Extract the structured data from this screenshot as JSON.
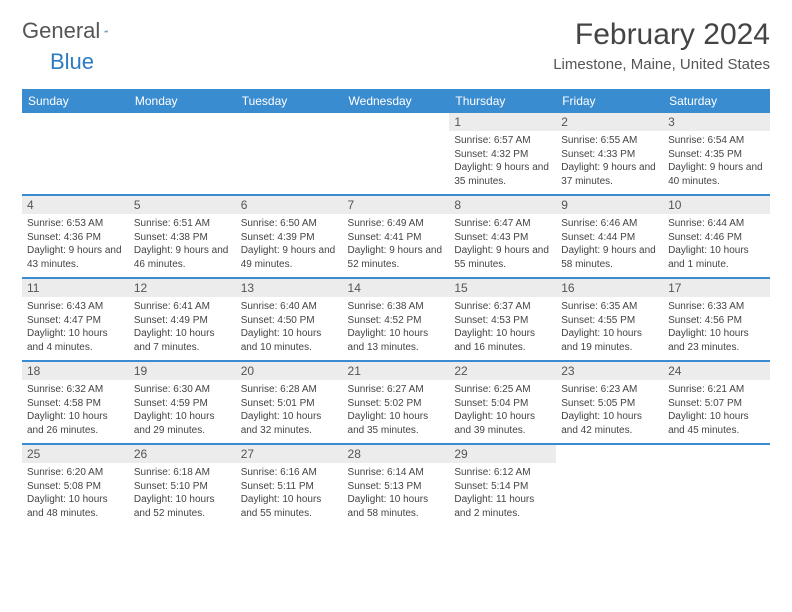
{
  "logo": {
    "text_a": "General",
    "text_b": "Blue"
  },
  "title": "February 2024",
  "location": "Limestone, Maine, United States",
  "colors": {
    "header_bg": "#3a8cd0",
    "header_text": "#ffffff",
    "daynum_bg": "#ececec",
    "border": "#3a8cd0",
    "body_text": "#444444",
    "logo_gray": "#555555",
    "logo_blue": "#2d7bc0"
  },
  "weekdays": [
    "Sunday",
    "Monday",
    "Tuesday",
    "Wednesday",
    "Thursday",
    "Friday",
    "Saturday"
  ],
  "weeks": [
    [
      null,
      null,
      null,
      null,
      {
        "n": "1",
        "sr": "Sunrise: 6:57 AM",
        "ss": "Sunset: 4:32 PM",
        "dl": "Daylight: 9 hours and 35 minutes."
      },
      {
        "n": "2",
        "sr": "Sunrise: 6:55 AM",
        "ss": "Sunset: 4:33 PM",
        "dl": "Daylight: 9 hours and 37 minutes."
      },
      {
        "n": "3",
        "sr": "Sunrise: 6:54 AM",
        "ss": "Sunset: 4:35 PM",
        "dl": "Daylight: 9 hours and 40 minutes."
      }
    ],
    [
      {
        "n": "4",
        "sr": "Sunrise: 6:53 AM",
        "ss": "Sunset: 4:36 PM",
        "dl": "Daylight: 9 hours and 43 minutes."
      },
      {
        "n": "5",
        "sr": "Sunrise: 6:51 AM",
        "ss": "Sunset: 4:38 PM",
        "dl": "Daylight: 9 hours and 46 minutes."
      },
      {
        "n": "6",
        "sr": "Sunrise: 6:50 AM",
        "ss": "Sunset: 4:39 PM",
        "dl": "Daylight: 9 hours and 49 minutes."
      },
      {
        "n": "7",
        "sr": "Sunrise: 6:49 AM",
        "ss": "Sunset: 4:41 PM",
        "dl": "Daylight: 9 hours and 52 minutes."
      },
      {
        "n": "8",
        "sr": "Sunrise: 6:47 AM",
        "ss": "Sunset: 4:43 PM",
        "dl": "Daylight: 9 hours and 55 minutes."
      },
      {
        "n": "9",
        "sr": "Sunrise: 6:46 AM",
        "ss": "Sunset: 4:44 PM",
        "dl": "Daylight: 9 hours and 58 minutes."
      },
      {
        "n": "10",
        "sr": "Sunrise: 6:44 AM",
        "ss": "Sunset: 4:46 PM",
        "dl": "Daylight: 10 hours and 1 minute."
      }
    ],
    [
      {
        "n": "11",
        "sr": "Sunrise: 6:43 AM",
        "ss": "Sunset: 4:47 PM",
        "dl": "Daylight: 10 hours and 4 minutes."
      },
      {
        "n": "12",
        "sr": "Sunrise: 6:41 AM",
        "ss": "Sunset: 4:49 PM",
        "dl": "Daylight: 10 hours and 7 minutes."
      },
      {
        "n": "13",
        "sr": "Sunrise: 6:40 AM",
        "ss": "Sunset: 4:50 PM",
        "dl": "Daylight: 10 hours and 10 minutes."
      },
      {
        "n": "14",
        "sr": "Sunrise: 6:38 AM",
        "ss": "Sunset: 4:52 PM",
        "dl": "Daylight: 10 hours and 13 minutes."
      },
      {
        "n": "15",
        "sr": "Sunrise: 6:37 AM",
        "ss": "Sunset: 4:53 PM",
        "dl": "Daylight: 10 hours and 16 minutes."
      },
      {
        "n": "16",
        "sr": "Sunrise: 6:35 AM",
        "ss": "Sunset: 4:55 PM",
        "dl": "Daylight: 10 hours and 19 minutes."
      },
      {
        "n": "17",
        "sr": "Sunrise: 6:33 AM",
        "ss": "Sunset: 4:56 PM",
        "dl": "Daylight: 10 hours and 23 minutes."
      }
    ],
    [
      {
        "n": "18",
        "sr": "Sunrise: 6:32 AM",
        "ss": "Sunset: 4:58 PM",
        "dl": "Daylight: 10 hours and 26 minutes."
      },
      {
        "n": "19",
        "sr": "Sunrise: 6:30 AM",
        "ss": "Sunset: 4:59 PM",
        "dl": "Daylight: 10 hours and 29 minutes."
      },
      {
        "n": "20",
        "sr": "Sunrise: 6:28 AM",
        "ss": "Sunset: 5:01 PM",
        "dl": "Daylight: 10 hours and 32 minutes."
      },
      {
        "n": "21",
        "sr": "Sunrise: 6:27 AM",
        "ss": "Sunset: 5:02 PM",
        "dl": "Daylight: 10 hours and 35 minutes."
      },
      {
        "n": "22",
        "sr": "Sunrise: 6:25 AM",
        "ss": "Sunset: 5:04 PM",
        "dl": "Daylight: 10 hours and 39 minutes."
      },
      {
        "n": "23",
        "sr": "Sunrise: 6:23 AM",
        "ss": "Sunset: 5:05 PM",
        "dl": "Daylight: 10 hours and 42 minutes."
      },
      {
        "n": "24",
        "sr": "Sunrise: 6:21 AM",
        "ss": "Sunset: 5:07 PM",
        "dl": "Daylight: 10 hours and 45 minutes."
      }
    ],
    [
      {
        "n": "25",
        "sr": "Sunrise: 6:20 AM",
        "ss": "Sunset: 5:08 PM",
        "dl": "Daylight: 10 hours and 48 minutes."
      },
      {
        "n": "26",
        "sr": "Sunrise: 6:18 AM",
        "ss": "Sunset: 5:10 PM",
        "dl": "Daylight: 10 hours and 52 minutes."
      },
      {
        "n": "27",
        "sr": "Sunrise: 6:16 AM",
        "ss": "Sunset: 5:11 PM",
        "dl": "Daylight: 10 hours and 55 minutes."
      },
      {
        "n": "28",
        "sr": "Sunrise: 6:14 AM",
        "ss": "Sunset: 5:13 PM",
        "dl": "Daylight: 10 hours and 58 minutes."
      },
      {
        "n": "29",
        "sr": "Sunrise: 6:12 AM",
        "ss": "Sunset: 5:14 PM",
        "dl": "Daylight: 11 hours and 2 minutes."
      },
      null,
      null
    ]
  ]
}
